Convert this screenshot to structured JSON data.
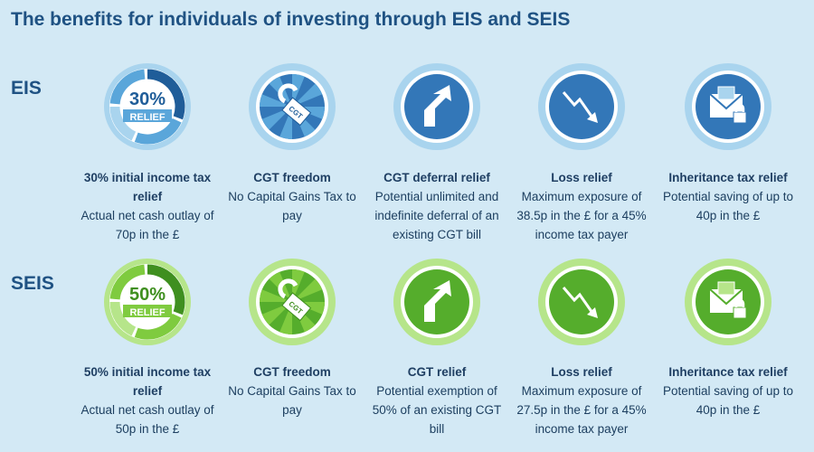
{
  "title": "The benefits for individuals of investing through EIS and SEIS",
  "sections": [
    {
      "label": "EIS",
      "items": [
        {
          "icon_text": "30%",
          "icon_subtext": "RELIEF",
          "heading": "30% initial income tax relief",
          "description": "Actual net cash outlay of 70p in the £"
        },
        {
          "icon_text": "CGT",
          "heading": "CGT freedom",
          "description": "No Capital Gains Tax to pay"
        },
        {
          "heading": "CGT deferral relief",
          "description": "Potential unlimited and indefinite deferral of an existing CGT bill"
        },
        {
          "heading": "Loss relief",
          "description": "Maximum exposure of 38.5p in the £ for a 45% income tax payer"
        },
        {
          "heading": "Inheritance tax relief",
          "description": "Potential saving of up to 40p in the £"
        }
      ]
    },
    {
      "label": "SEIS",
      "items": [
        {
          "icon_text": "50%",
          "icon_subtext": "RELIEF",
          "heading": "50% initial income tax relief",
          "description": "Actual net cash outlay of 50p in the £"
        },
        {
          "icon_text": "CGT",
          "heading": "CGT freedom",
          "description": "No Capital Gains Tax to pay"
        },
        {
          "heading": "CGT relief",
          "description": "Potential exemption of 50% of an existing CGT bill"
        },
        {
          "heading": "Loss relief",
          "description": "Maximum exposure of 27.5p in the £ for a 45% income tax payer"
        },
        {
          "heading": "Inheritance tax relief",
          "description": "Potential saving of up to 40p in the £"
        }
      ]
    }
  ]
}
